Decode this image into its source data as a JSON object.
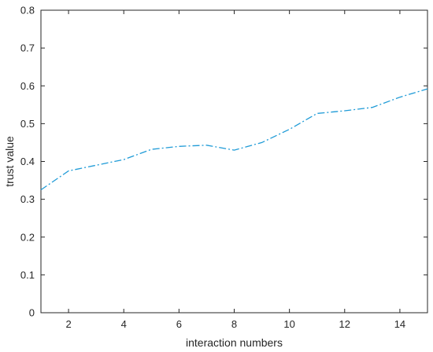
{
  "chart_data": {
    "type": "line",
    "title": "",
    "xlabel": "interaction numbers",
    "ylabel": "trust value",
    "xlim": [
      1,
      15
    ],
    "ylim": [
      0,
      0.8
    ],
    "xticks": [
      2,
      4,
      6,
      8,
      10,
      12,
      14
    ],
    "yticks": [
      0,
      0.1,
      0.2,
      0.3,
      0.4,
      0.5,
      0.6,
      0.7,
      0.8
    ],
    "grid": false,
    "legend": "none",
    "series": [
      {
        "color": "#1f9bd7",
        "line_style": "dash-dot",
        "x": [
          1,
          2,
          3,
          4,
          5,
          6,
          7,
          8,
          9,
          10,
          11,
          12,
          13,
          14,
          15
        ],
        "y": [
          0.325,
          0.375,
          0.39,
          0.405,
          0.432,
          0.44,
          0.443,
          0.43,
          0.45,
          0.485,
          0.527,
          0.534,
          0.543,
          0.57,
          0.592
        ]
      }
    ]
  }
}
